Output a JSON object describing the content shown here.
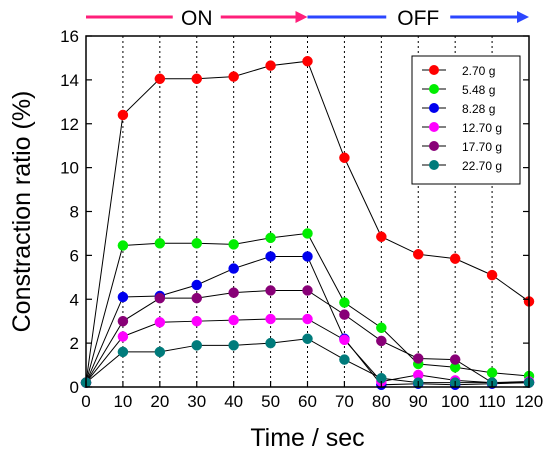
{
  "chart_data": {
    "type": "line",
    "xlabel": "Time / sec",
    "ylabel": "Constraction ratio (%)",
    "xlim": [
      0,
      120
    ],
    "ylim": [
      0,
      16
    ],
    "xticks": [
      0,
      10,
      20,
      30,
      40,
      50,
      60,
      70,
      80,
      90,
      100,
      110,
      120
    ],
    "yticks": [
      0,
      2,
      4,
      6,
      8,
      10,
      12,
      14,
      16
    ],
    "vertical_dotted_lines_at": [
      10,
      20,
      30,
      40,
      50,
      60,
      70,
      80,
      90,
      100,
      110
    ],
    "legend_position": "top-right",
    "phases": [
      {
        "label": "ON",
        "x_start": 0,
        "x_end": 60,
        "color": "#ff1f7a"
      },
      {
        "label": "OFF",
        "x_start": 60,
        "x_end": 120,
        "color": "#2b46ff"
      }
    ],
    "x": [
      0,
      10,
      20,
      30,
      40,
      50,
      60,
      70,
      80,
      90,
      100,
      110,
      120
    ],
    "series": [
      {
        "name": "2.70 g",
        "color": "#ff0000",
        "values": [
          0.2,
          12.4,
          14.05,
          14.05,
          14.15,
          14.65,
          14.85,
          10.45,
          6.85,
          6.05,
          5.85,
          5.1,
          3.9
        ]
      },
      {
        "name": "5.48 g",
        "color": "#00ee00",
        "values": [
          0.2,
          6.45,
          6.55,
          6.55,
          6.5,
          6.8,
          7.0,
          3.85,
          2.7,
          1.05,
          0.9,
          0.65,
          0.5
        ]
      },
      {
        "name": "8.28 g",
        "color": "#0000ee",
        "values": [
          0.2,
          4.1,
          4.15,
          4.65,
          5.4,
          5.95,
          5.95,
          2.2,
          0.1,
          0.15,
          0.1,
          0.15,
          0.2
        ]
      },
      {
        "name": "12.70 g",
        "color": "#ff00ff",
        "values": [
          0.2,
          2.3,
          2.95,
          3.0,
          3.05,
          3.1,
          3.1,
          2.15,
          0.25,
          0.55,
          0.3,
          0.2,
          0.25
        ]
      },
      {
        "name": "17.70 g",
        "color": "#880077",
        "values": [
          0.2,
          3.0,
          4.05,
          4.05,
          4.3,
          4.4,
          4.4,
          3.3,
          2.1,
          1.3,
          1.25,
          0.2,
          0.2
        ]
      },
      {
        "name": "22.70 g",
        "color": "#007b7b",
        "values": [
          0.2,
          1.6,
          1.6,
          1.9,
          1.9,
          2.0,
          2.2,
          1.25,
          0.4,
          0.2,
          0.2,
          0.2,
          0.2
        ]
      }
    ]
  }
}
